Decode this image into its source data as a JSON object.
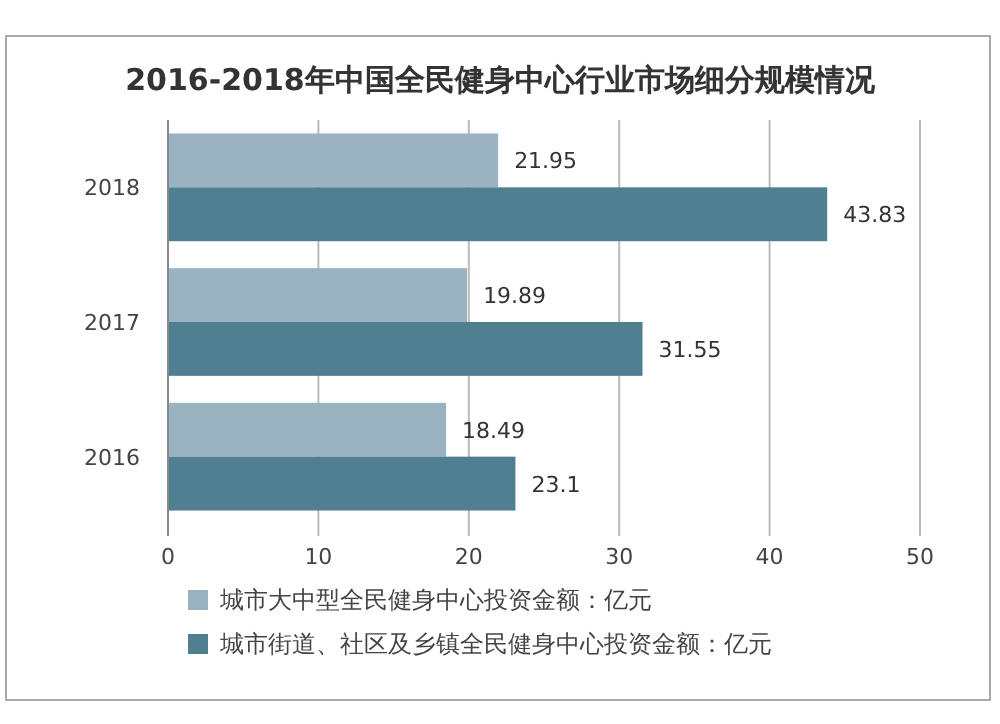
{
  "chart_data": {
    "type": "bar",
    "orientation": "horizontal",
    "title": "2016-2018年中国全民健身中心行业市场细分规模情况",
    "categories": [
      "2018",
      "2017",
      "2016"
    ],
    "series": [
      {
        "name": "城市大中型全民健身中心投资金额：亿元",
        "color": "#9ab3c0",
        "values": [
          21.95,
          19.89,
          18.49
        ]
      },
      {
        "name": "城市街道、社区及乡镇全民健身中心投资金额：亿元",
        "color": "#507f91",
        "values": [
          43.83,
          31.55,
          23.1
        ]
      }
    ],
    "xlim": [
      0,
      50
    ],
    "xticks": [
      0,
      10,
      20,
      30,
      40,
      50
    ],
    "grid": "x",
    "legend": "bottom",
    "data_labels": true
  }
}
